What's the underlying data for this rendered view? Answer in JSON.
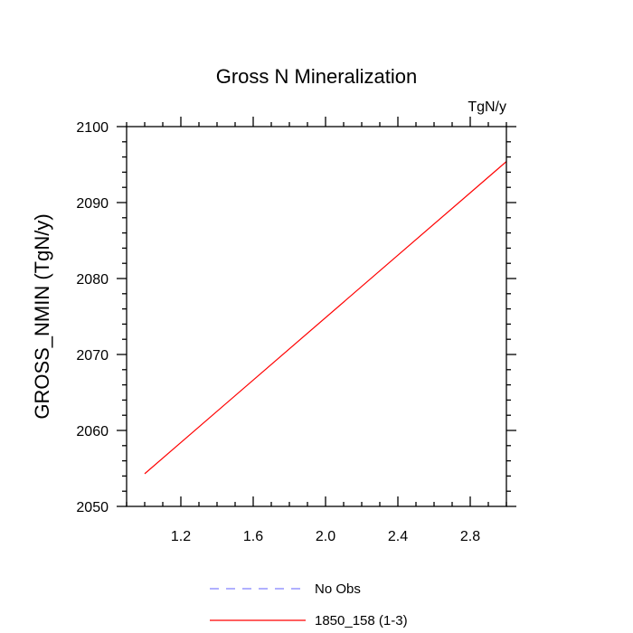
{
  "chart_data": {
    "type": "line",
    "title": "Gross N Mineralization",
    "units_label": "TgN/y",
    "ylabel": "GROSS_NMIN  (TgN/y)",
    "xlabel": "",
    "xlim": [
      0.9,
      3.0
    ],
    "ylim": [
      2050,
      2100
    ],
    "x_ticks": [
      1.2,
      1.6,
      2.0,
      2.4,
      2.8
    ],
    "x_tick_labels": [
      "1.2",
      "1.6",
      "2.0",
      "2.4",
      "2.8"
    ],
    "x_minor_step": 0.1,
    "y_ticks": [
      2050,
      2060,
      2070,
      2080,
      2090,
      2100
    ],
    "y_tick_labels": [
      "2050",
      "2060",
      "2070",
      "2080",
      "2090",
      "2100"
    ],
    "y_minor_step": 2,
    "series": [
      {
        "name": "No Obs",
        "color": "#8080ff",
        "dash": "dashed",
        "x": [],
        "y": []
      },
      {
        "name": "1850_158 (1-3)",
        "color": "#ff0000",
        "dash": "solid",
        "x": [
          1.0,
          3.0
        ],
        "y": [
          2054.3,
          2095.4
        ]
      }
    ],
    "legend": [
      {
        "label": "No Obs",
        "color": "#8080ff",
        "dash": "dashed"
      },
      {
        "label": "1850_158 (1-3)",
        "color": "#ff0000",
        "dash": "solid"
      }
    ],
    "grid": false
  }
}
